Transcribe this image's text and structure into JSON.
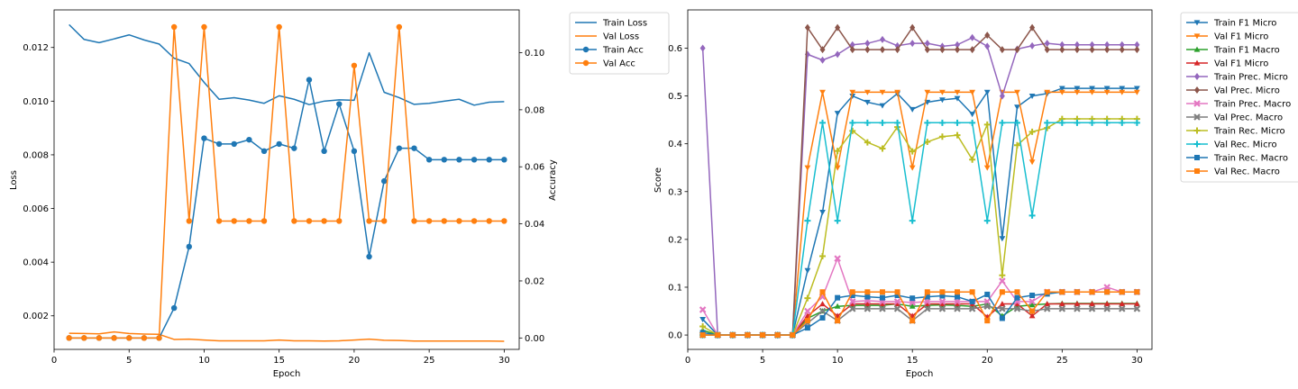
{
  "chart_data": [
    {
      "type": "line",
      "title": "",
      "xlabel": "Epoch",
      "ylabel": "Loss",
      "y2label": "Accuracy",
      "xlim": [
        0,
        31
      ],
      "xticks": [
        0,
        5,
        10,
        15,
        20,
        25,
        30
      ],
      "ylim": [
        0.00075,
        0.0134
      ],
      "yticks": [
        0.002,
        0.004,
        0.006,
        0.008,
        0.01,
        0.012
      ],
      "ytick_labels": [
        "0.002",
        "0.004",
        "0.006",
        "0.008",
        "0.010",
        "0.012"
      ],
      "y2lim": [
        -0.004,
        0.115
      ],
      "y2ticks": [
        0.0,
        0.02,
        0.04,
        0.06,
        0.08,
        0.1
      ],
      "y2tick_labels": [
        "0.00",
        "0.02",
        "0.04",
        "0.06",
        "0.08",
        "0.10"
      ],
      "legend_position": "outside-right",
      "x": [
        1,
        2,
        3,
        4,
        5,
        6,
        7,
        8,
        9,
        10,
        11,
        12,
        13,
        14,
        15,
        16,
        17,
        18,
        19,
        20,
        21,
        22,
        23,
        24,
        25,
        26,
        27,
        28,
        29,
        30
      ],
      "series": [
        {
          "name": "Train Loss",
          "axis": "left",
          "color": "#1f77b4",
          "marker": "none",
          "values": [
            0.01285,
            0.0123,
            0.01218,
            0.01232,
            0.01247,
            0.01228,
            0.01213,
            0.0116,
            0.0114,
            0.0107,
            0.01007,
            0.01013,
            0.01004,
            0.00992,
            0.0102,
            0.01007,
            0.00987,
            0.01,
            0.01005,
            0.01003,
            0.0118,
            0.01033,
            0.01013,
            0.00988,
            0.00992,
            0.01,
            0.01007,
            0.00985,
            0.00996,
            0.00998
          ]
        },
        {
          "name": "Val Loss",
          "axis": "left",
          "color": "#ff7f0e",
          "marker": "none",
          "values": [
            0.00135,
            0.00134,
            0.00133,
            0.0014,
            0.00134,
            0.00132,
            0.00131,
            0.00112,
            0.00113,
            0.0011,
            0.00107,
            0.00107,
            0.00107,
            0.00107,
            0.0011,
            0.00107,
            0.00107,
            0.00106,
            0.00107,
            0.0011,
            0.00113,
            0.00109,
            0.00108,
            0.00106,
            0.00106,
            0.00106,
            0.00106,
            0.00106,
            0.00106,
            0.00105
          ]
        },
        {
          "name": "Train Acc",
          "axis": "right",
          "color": "#1f77b4",
          "marker": "circle",
          "values": [
            0,
            0,
            0,
            0,
            0,
            0,
            0,
            0.0105,
            0.032,
            0.07,
            0.068,
            0.068,
            0.0695,
            0.0655,
            0.068,
            0.0665,
            0.0905,
            0.0655,
            0.082,
            0.0655,
            0.0285,
            0.055,
            0.0665,
            0.0665,
            0.0625,
            0.0625,
            0.0625,
            0.0625,
            0.0625,
            0.0625
          ]
        },
        {
          "name": "Val Acc",
          "axis": "right",
          "color": "#ff7f0e",
          "marker": "circle",
          "values": [
            0,
            0,
            0,
            0,
            0,
            0,
            0,
            0.109,
            0.041,
            0.109,
            0.041,
            0.041,
            0.041,
            0.041,
            0.109,
            0.041,
            0.041,
            0.041,
            0.041,
            0.0955,
            0.041,
            0.041,
            0.109,
            0.041,
            0.041,
            0.041,
            0.041,
            0.041,
            0.041,
            0.041
          ]
        }
      ]
    },
    {
      "type": "line",
      "title": "",
      "xlabel": "Epoch",
      "ylabel": "Score",
      "xlim": [
        0,
        31
      ],
      "xticks": [
        0,
        5,
        10,
        15,
        20,
        25,
        30
      ],
      "ylim": [
        -0.03,
        0.68
      ],
      "yticks": [
        0.0,
        0.1,
        0.2,
        0.3,
        0.4,
        0.5,
        0.6
      ],
      "ytick_labels": [
        "0.0",
        "0.1",
        "0.2",
        "0.3",
        "0.4",
        "0.5",
        "0.6"
      ],
      "legend_position": "outside-right",
      "x": [
        1,
        2,
        3,
        4,
        5,
        6,
        7,
        8,
        9,
        10,
        11,
        12,
        13,
        14,
        15,
        16,
        17,
        18,
        19,
        20,
        21,
        22,
        23,
        24,
        25,
        26,
        27,
        28,
        29,
        30
      ],
      "series": [
        {
          "name": "Train F1 Micro",
          "color": "#1f77b4",
          "marker": "tri_down",
          "values": [
            0.033,
            0,
            0,
            0,
            0,
            0,
            0,
            0.135,
            0.257,
            0.464,
            0.5,
            0.487,
            0.48,
            0.505,
            0.472,
            0.487,
            0.492,
            0.495,
            0.462,
            0.508,
            0.202,
            0.477,
            0.5,
            0.505,
            0.516,
            0.516,
            0.516,
            0.516,
            0.516,
            0.516
          ]
        },
        {
          "name": "Val F1 Micro",
          "color": "#ff7f0e",
          "marker": "tri_down",
          "values": [
            0,
            0,
            0,
            0,
            0,
            0,
            0,
            0.35,
            0.508,
            0.35,
            0.508,
            0.508,
            0.508,
            0.508,
            0.35,
            0.508,
            0.508,
            0.508,
            0.508,
            0.35,
            0.508,
            0.508,
            0.362,
            0.508,
            0.508,
            0.508,
            0.508,
            0.508,
            0.508,
            0.508
          ]
        },
        {
          "name": "Train F1 Macro",
          "color": "#2ca02c",
          "marker": "tri_up",
          "values": [
            0.01,
            0,
            0,
            0,
            0,
            0,
            0,
            0.035,
            0.05,
            0.06,
            0.062,
            0.062,
            0.062,
            0.065,
            0.06,
            0.062,
            0.063,
            0.062,
            0.06,
            0.065,
            0.04,
            0.06,
            0.063,
            0.065,
            0.066,
            0.066,
            0.066,
            0.066,
            0.066,
            0.066
          ]
        },
        {
          "name": "Val F1 Micro",
          "color": "#d62728",
          "marker": "tri_up",
          "values": [
            0,
            0,
            0,
            0,
            0,
            0,
            0,
            0.04,
            0.065,
            0.04,
            0.065,
            0.065,
            0.065,
            0.065,
            0.04,
            0.065,
            0.065,
            0.065,
            0.065,
            0.038,
            0.065,
            0.065,
            0.04,
            0.065,
            0.065,
            0.065,
            0.065,
            0.065,
            0.065,
            0.065
          ]
        },
        {
          "name": "Train Prec. Micro",
          "color": "#9467bd",
          "marker": "diamond",
          "values": [
            0.6,
            0,
            0,
            0,
            0,
            0,
            0,
            0.587,
            0.575,
            0.587,
            0.607,
            0.61,
            0.618,
            0.605,
            0.61,
            0.61,
            0.604,
            0.607,
            0.622,
            0.604,
            0.5,
            0.598,
            0.605,
            0.61,
            0.607,
            0.607,
            0.607,
            0.607,
            0.607,
            0.607
          ]
        },
        {
          "name": "Val Prec. Micro",
          "color": "#8c564b",
          "marker": "diamond",
          "values": [
            0,
            0,
            0,
            0,
            0,
            0,
            0,
            0.643,
            0.597,
            0.643,
            0.597,
            0.597,
            0.597,
            0.597,
            0.643,
            0.597,
            0.597,
            0.597,
            0.597,
            0.627,
            0.597,
            0.597,
            0.643,
            0.597,
            0.597,
            0.597,
            0.597,
            0.597,
            0.597,
            0.597
          ]
        },
        {
          "name": "Train Prec. Macro",
          "color": "#e377c2",
          "marker": "x",
          "values": [
            0.053,
            0,
            0,
            0,
            0,
            0,
            0,
            0.05,
            0.08,
            0.16,
            0.07,
            0.072,
            0.07,
            0.07,
            0.068,
            0.07,
            0.07,
            0.07,
            0.07,
            0.07,
            0.113,
            0.07,
            0.07,
            0.09,
            0.09,
            0.09,
            0.09,
            0.1,
            0.09,
            0.09
          ]
        },
        {
          "name": "Val Prec. Macro",
          "color": "#7f7f7f",
          "marker": "x",
          "values": [
            0,
            0,
            0,
            0,
            0,
            0,
            0,
            0.025,
            0.05,
            0.03,
            0.055,
            0.055,
            0.055,
            0.055,
            0.03,
            0.055,
            0.055,
            0.055,
            0.055,
            0.06,
            0.055,
            0.055,
            0.05,
            0.055,
            0.055,
            0.055,
            0.055,
            0.055,
            0.055,
            0.055
          ]
        },
        {
          "name": "Train Rec. Micro",
          "color": "#bcbd22",
          "marker": "plus",
          "values": [
            0.018,
            0,
            0,
            0,
            0,
            0,
            0,
            0.077,
            0.165,
            0.385,
            0.427,
            0.403,
            0.39,
            0.435,
            0.384,
            0.404,
            0.415,
            0.418,
            0.367,
            0.44,
            0.125,
            0.397,
            0.425,
            0.433,
            0.452,
            0.452,
            0.452,
            0.452,
            0.452,
            0.452
          ]
        },
        {
          "name": "Val Rec. Micro",
          "color": "#17becf",
          "marker": "plus",
          "values": [
            0,
            0,
            0,
            0,
            0,
            0,
            0,
            0.239,
            0.444,
            0.239,
            0.444,
            0.444,
            0.444,
            0.444,
            0.239,
            0.444,
            0.444,
            0.444,
            0.444,
            0.239,
            0.444,
            0.444,
            0.25,
            0.444,
            0.444,
            0.444,
            0.444,
            0.444,
            0.444,
            0.444
          ]
        },
        {
          "name": "Train Rec. Macro",
          "color": "#1f77b4",
          "marker": "square",
          "values": [
            0.005,
            0,
            0,
            0,
            0,
            0,
            0,
            0.015,
            0.036,
            0.078,
            0.083,
            0.08,
            0.078,
            0.083,
            0.077,
            0.08,
            0.082,
            0.08,
            0.07,
            0.085,
            0.035,
            0.078,
            0.083,
            0.086,
            0.09,
            0.09,
            0.09,
            0.09,
            0.09,
            0.09
          ]
        },
        {
          "name": "Val Rec. Macro",
          "color": "#ff7f0e",
          "marker": "square",
          "values": [
            0,
            0,
            0,
            0,
            0,
            0,
            0,
            0.03,
            0.09,
            0.03,
            0.09,
            0.09,
            0.09,
            0.09,
            0.03,
            0.09,
            0.09,
            0.09,
            0.09,
            0.03,
            0.09,
            0.09,
            0.05,
            0.09,
            0.09,
            0.09,
            0.09,
            0.09,
            0.09,
            0.09
          ]
        }
      ]
    }
  ]
}
